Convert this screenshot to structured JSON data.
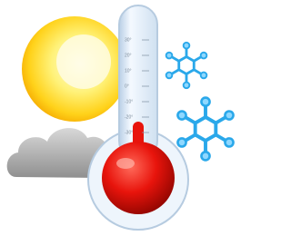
{
  "thermometer": {
    "scale_labels": [
      "30°",
      "20°",
      "10°",
      "0°",
      "-10°",
      "-20°",
      "-30°"
    ]
  }
}
